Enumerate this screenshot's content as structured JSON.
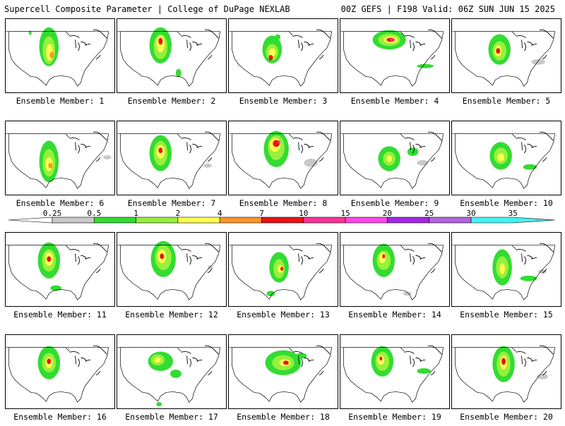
{
  "header": {
    "title_left": "Supercell Composite Parameter | College of DuPage NEXLAB",
    "title_right": "00Z GEFS | F198 Valid: 06Z SUN JUN 15 2025"
  },
  "colorbar": {
    "ticks": [
      "0.25",
      "0.5",
      "1",
      "2",
      "4",
      "7",
      "10",
      "15",
      "20",
      "25",
      "30",
      "35"
    ],
    "colors": [
      "#c8c8c8",
      "#32dc32",
      "#96f03c",
      "#ffff50",
      "#ff9628",
      "#e61414",
      "#ff3296",
      "#ff46e6",
      "#a028e6",
      "#b464dc",
      "#46f0f0"
    ],
    "underflow_color": "#ffffff",
    "overflow_color": "#46f0f0"
  },
  "panels": [
    {
      "caption": "Ensemble Member: 1"
    },
    {
      "caption": "Ensemble Member: 2"
    },
    {
      "caption": "Ensemble Member: 3"
    },
    {
      "caption": "Ensemble Member: 4"
    },
    {
      "caption": "Ensemble Member: 5"
    },
    {
      "caption": "Ensemble Member: 6"
    },
    {
      "caption": "Ensemble Member: 7"
    },
    {
      "caption": "Ensemble Member: 8"
    },
    {
      "caption": "Ensemble Member: 9"
    },
    {
      "caption": "Ensemble Member: 10"
    },
    {
      "caption": "Ensemble Member: 11"
    },
    {
      "caption": "Ensemble Member: 12"
    },
    {
      "caption": "Ensemble Member: 13"
    },
    {
      "caption": "Ensemble Member: 14"
    },
    {
      "caption": "Ensemble Member: 15"
    },
    {
      "caption": "Ensemble Member: 16"
    },
    {
      "caption": "Ensemble Member: 17"
    },
    {
      "caption": "Ensemble Member: 18"
    },
    {
      "caption": "Ensemble Member: 19"
    },
    {
      "caption": "Ensemble Member: 20"
    }
  ]
}
